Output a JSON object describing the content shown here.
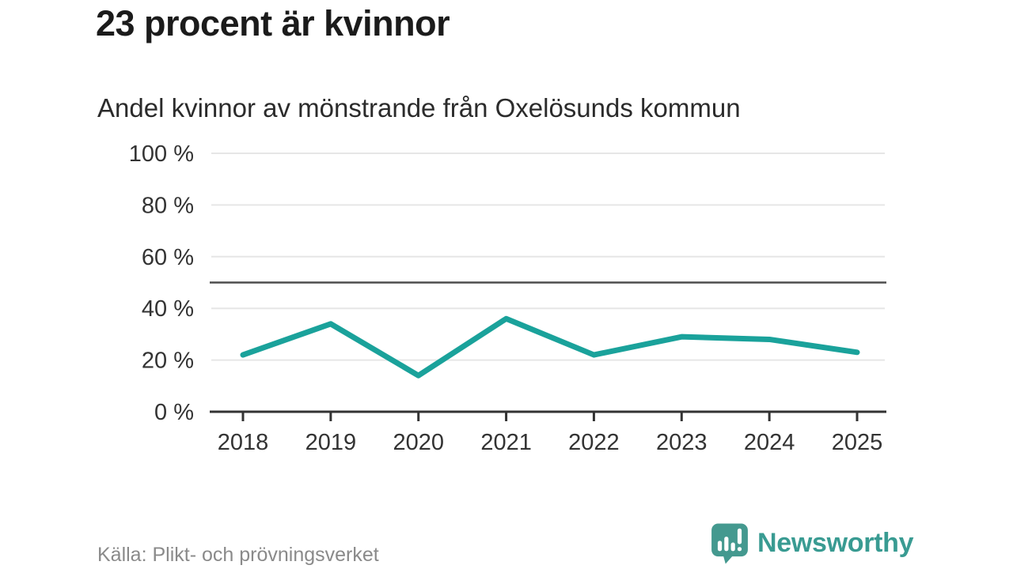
{
  "title": "23 procent är kvinnor",
  "subtitle": "Andel kvinnor av mönstrande från Oxelösunds kommun",
  "source": "Källa: Plikt- och prövningsverket",
  "brand": {
    "name": "Newsworthy",
    "icon": "bar-chart-speech-bubble-icon",
    "text_color": "#399b92",
    "icon_color": "#44998f"
  },
  "colors": {
    "line": "#1aa29b",
    "reference_line": "#4d4d4d",
    "grid": "#e6e6e6",
    "axis": "#333333",
    "tick_text": "#333333",
    "muted_text": "#8a8a8a"
  },
  "chart_data": {
    "type": "line",
    "title": "23 procent är kvinnor",
    "subtitle": "Andel kvinnor av mönstrande från Oxelösunds kommun",
    "x": [
      2018,
      2019,
      2020,
      2021,
      2022,
      2023,
      2024,
      2025
    ],
    "series": [
      {
        "name": "Andel kvinnor av mönstrande",
        "values": [
          22,
          34,
          14,
          36,
          22,
          29,
          28,
          23
        ]
      }
    ],
    "reference_line": {
      "value": 50
    },
    "xlabel": "",
    "ylabel": "",
    "ylim": [
      0,
      100
    ],
    "yticks": [
      0,
      20,
      40,
      60,
      80,
      100
    ],
    "ytick_suffix": " %",
    "grid": true,
    "legend": false
  }
}
